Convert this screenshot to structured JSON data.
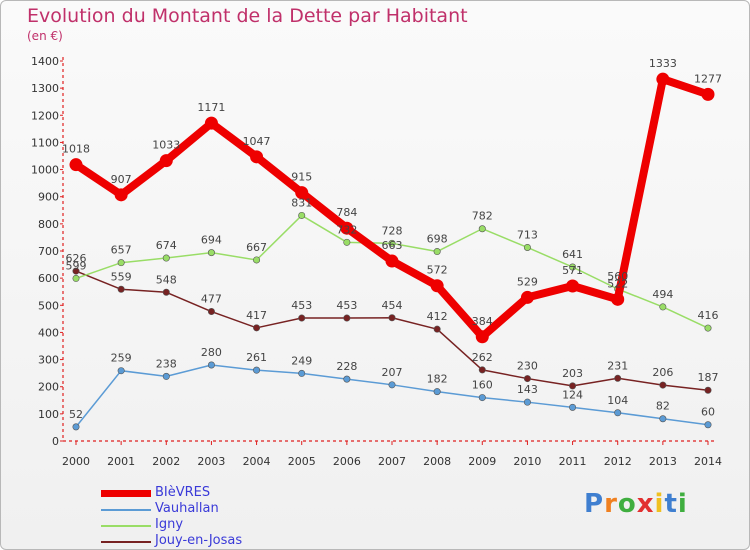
{
  "chart_data": {
    "type": "line",
    "title": "Evolution du Montant de la Dette par Habitant",
    "subtitle": "(en €)",
    "x": [
      "2000",
      "2001",
      "2002",
      "2003",
      "2004",
      "2005",
      "2006",
      "2007",
      "2008",
      "2009",
      "2010",
      "2011",
      "2012",
      "2013",
      "2014"
    ],
    "ylim": [
      0,
      1400
    ],
    "yticks": [
      0,
      100,
      200,
      300,
      400,
      500,
      600,
      700,
      800,
      900,
      1000,
      1100,
      1200,
      1300,
      1400
    ],
    "grid": false,
    "legend_placement": "bottom-left",
    "series": [
      {
        "name": "BIèVRES",
        "color": "#ee0000",
        "values": [
          1018,
          907,
          1033,
          1171,
          1047,
          915,
          784,
          663,
          572,
          384,
          529,
          571,
          522,
          1333,
          1277
        ],
        "labels": [
          "1018",
          "907",
          "1033",
          "1171",
          "1047",
          "915",
          "784",
          "663",
          "572",
          "384",
          "529",
          "571",
          "522",
          "1333",
          "1277"
        ]
      },
      {
        "name": "Vauhallan",
        "color": "#5b9bd5",
        "values": [
          52,
          259,
          238,
          280,
          261,
          249,
          228,
          207,
          182,
          160,
          143,
          124,
          104,
          82,
          60
        ],
        "labels": [
          "52",
          "259",
          "238",
          "280",
          "261",
          "249",
          "228",
          "207",
          "182",
          "160",
          "143",
          "124",
          "104",
          "82",
          "60"
        ]
      },
      {
        "name": "Igny",
        "color": "#99dd66",
        "values": [
          599,
          657,
          674,
          694,
          667,
          831,
          732,
          728,
          698,
          782,
          713,
          641,
          560,
          494,
          416
        ],
        "labels": [
          "599",
          "657",
          "674",
          "694",
          "667",
          "831",
          "732",
          "728",
          "698",
          "782",
          "713",
          "641",
          "560",
          "494",
          "416"
        ]
      },
      {
        "name": "Jouy-en-Josas",
        "color": "#772222",
        "values": [
          626,
          559,
          548,
          477,
          417,
          453,
          453,
          454,
          412,
          262,
          230,
          203,
          231,
          206,
          187
        ],
        "labels": [
          "626",
          "559",
          "548",
          "477",
          "417",
          "453",
          "453",
          "454",
          "412",
          "262",
          "230",
          "203",
          "231",
          "206",
          "187"
        ]
      }
    ]
  },
  "logo": {
    "letters": [
      "P",
      "r",
      "o",
      "x",
      "i",
      "t",
      "i"
    ],
    "colors": [
      "#3f7fd0",
      "#f08020",
      "#3fae3f",
      "#e23030",
      "#f0c020",
      "#3f7fd0",
      "#3fae3f"
    ]
  }
}
